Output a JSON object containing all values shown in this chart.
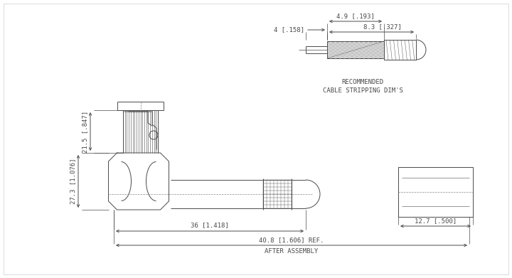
{
  "bg_color": "#ffffff",
  "line_color": "#4a4a4a",
  "hatch_color": "#4a4a4a",
  "dim_color": "#4a4a4a",
  "text_color": "#4a4a4a",
  "font_size": 6.5,
  "title_font_size": 6.5,
  "fig_width": 7.2,
  "fig_height": 3.91,
  "labels": {
    "dim_27_3": "27.3 [1.076]",
    "dim_21_5": "21.5 [.847]",
    "dim_36": "36 [1.418]",
    "dim_40_8": "40.8 [1.606] REF.",
    "after_assembly": "AFTER ASSEMBLY",
    "dim_4": "4 [.158]",
    "dim_4_9": "4.9 [.193]",
    "dim_8_3": "8.3 [.327]",
    "dim_12_7": "12.7 [.500]",
    "recommended": "RECOMMENDED",
    "cable_stripping": "CABLE STRIPPING DIM'S"
  }
}
